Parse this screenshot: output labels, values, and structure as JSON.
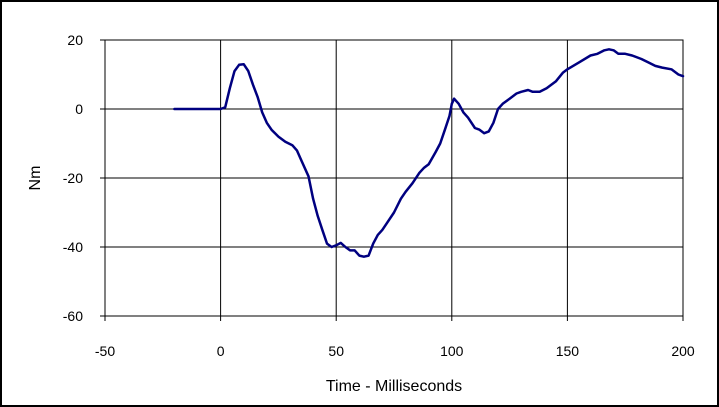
{
  "chart_data": {
    "type": "line",
    "title": "",
    "xlabel": "Time - Milliseconds",
    "ylabel": "Nm",
    "xlim": [
      -50,
      200
    ],
    "ylim": [
      -60,
      20
    ],
    "xticks": [
      -50,
      0,
      50,
      100,
      150,
      200
    ],
    "yticks": [
      -60,
      -40,
      -20,
      0,
      20
    ],
    "grid": true,
    "legend": "none",
    "line_color": "#000080",
    "series": [
      {
        "x": [
          -20,
          -10,
          0,
          2,
          4,
          6,
          8,
          10,
          12,
          14,
          16,
          18,
          20,
          22,
          25,
          28,
          31,
          33,
          35,
          38,
          40,
          42,
          44,
          46,
          48,
          50,
          52,
          54,
          56,
          58,
          60,
          62,
          64,
          66,
          68,
          70,
          72,
          75,
          78,
          80,
          83,
          86,
          88,
          90,
          93,
          95,
          97,
          99,
          100,
          101,
          103,
          105,
          107,
          110,
          112,
          114,
          116,
          118,
          120,
          122,
          125,
          128,
          130,
          133,
          135,
          138,
          141,
          145,
          148,
          150,
          155,
          160,
          163,
          166,
          168,
          170,
          172,
          175,
          178,
          182,
          185,
          188,
          191,
          195,
          198,
          200
        ],
        "y": [
          0,
          0,
          0,
          0.5,
          6,
          11,
          12.8,
          13,
          11,
          7,
          3.5,
          -1,
          -4,
          -6,
          -8,
          -9.5,
          -10.5,
          -12,
          -15,
          -19.5,
          -26,
          -31,
          -35,
          -39,
          -40,
          -39.5,
          -38.8,
          -40,
          -41,
          -41,
          -42.5,
          -42.8,
          -42.5,
          -39,
          -36.5,
          -35,
          -33,
          -30,
          -26,
          -24,
          -21.5,
          -18.5,
          -17,
          -16,
          -12.5,
          -10,
          -6,
          -2,
          1.5,
          3,
          1.5,
          -1,
          -2.5,
          -5.5,
          -6,
          -7,
          -6.5,
          -4,
          0,
          1.5,
          3,
          4.5,
          5,
          5.5,
          5,
          5,
          6,
          8,
          10.5,
          11.5,
          13.5,
          15.5,
          16,
          17,
          17.3,
          17,
          16,
          16,
          15.5,
          14.5,
          13.5,
          12.5,
          12,
          11.5,
          10,
          9.5
        ]
      }
    ]
  }
}
